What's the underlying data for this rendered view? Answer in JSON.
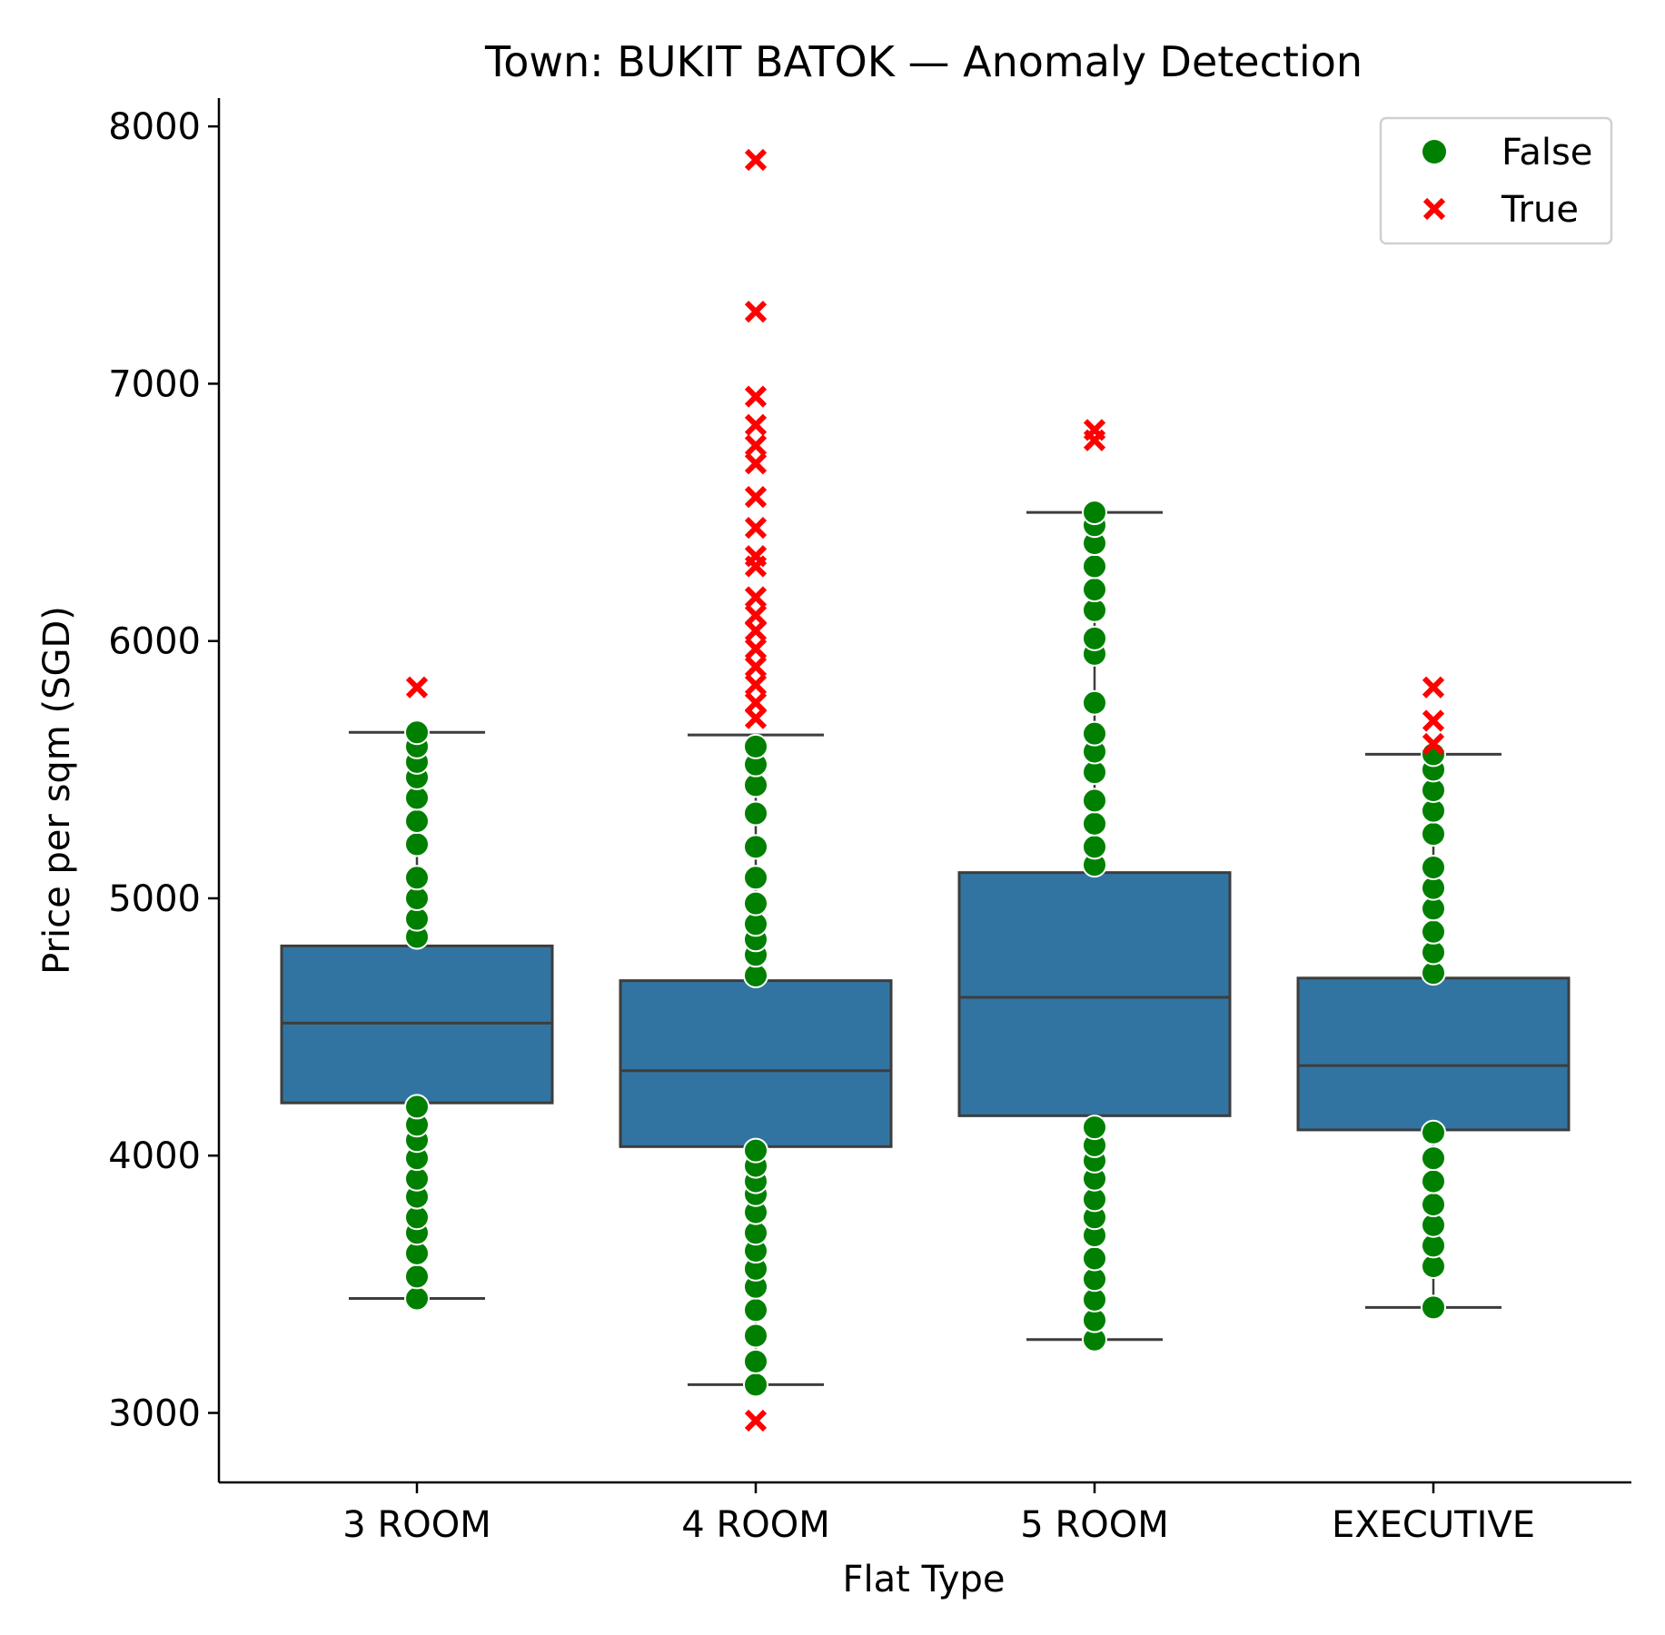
{
  "chart_data": {
    "type": "box",
    "title": "Town: BUKIT BATOK — Anomaly Detection",
    "xlabel": "Flat Type",
    "ylabel": "Price per sqm (SGD)",
    "categories": [
      "3 ROOM",
      "4 ROOM",
      "5 ROOM",
      "EXECUTIVE"
    ],
    "ylim": [
      2730,
      8110
    ],
    "yticks": [
      3000,
      4000,
      5000,
      6000,
      7000,
      8000
    ],
    "grid": false,
    "legend": {
      "placement": "top-right",
      "entries": [
        "False",
        "True"
      ]
    },
    "colors": {
      "box": "#3274a1",
      "box_edge": "#3d3d3d",
      "normal": "#008000",
      "anomaly": "#ff0000"
    },
    "boxes": [
      {
        "category": "3 ROOM",
        "whisker_low": 3445,
        "q1": 4205,
        "median": 4515,
        "q3": 4815,
        "whisker_high": 5645
      },
      {
        "category": "4 ROOM",
        "whisker_low": 3110,
        "q1": 4035,
        "median": 4330,
        "q3": 4680,
        "whisker_high": 5635
      },
      {
        "category": "5 ROOM",
        "whisker_low": 3285,
        "q1": 4155,
        "median": 4615,
        "q3": 5100,
        "whisker_high": 6500
      },
      {
        "category": "EXECUTIVE",
        "whisker_low": 3410,
        "q1": 4100,
        "median": 4350,
        "q3": 4690,
        "whisker_high": 5560
      }
    ],
    "series": [
      {
        "name": "False",
        "marker": "circle",
        "points": [
          {
            "category": "3 ROOM",
            "values": [
              3445,
              3530,
              3620,
              3700,
              3760,
              3840,
              3910,
              3990,
              4060,
              4120,
              4190,
              4850,
              4920,
              5000,
              5080,
              5210,
              5300,
              5390,
              5470,
              5530,
              5590,
              5645
            ]
          },
          {
            "category": "4 ROOM",
            "values": [
              3110,
              3200,
              3300,
              3400,
              3490,
              3560,
              3630,
              3700,
              3780,
              3850,
              3900,
              3960,
              4020,
              4700,
              4780,
              4840,
              4900,
              4980,
              5080,
              5200,
              5330,
              5440,
              5520,
              5590
            ]
          },
          {
            "category": "5 ROOM",
            "values": [
              3285,
              3360,
              3440,
              3520,
              3600,
              3690,
              3760,
              3830,
              3910,
              3980,
              4040,
              4110,
              5130,
              5200,
              5290,
              5380,
              5490,
              5570,
              5640,
              5760,
              5950,
              6010,
              6120,
              6200,
              6290,
              6380,
              6450,
              6500
            ]
          },
          {
            "category": "EXECUTIVE",
            "values": [
              3410,
              3570,
              3650,
              3730,
              3810,
              3900,
              3990,
              4090,
              4710,
              4790,
              4870,
              4960,
              5040,
              5120,
              5250,
              5340,
              5420,
              5500,
              5560
            ]
          }
        ]
      },
      {
        "name": "True",
        "marker": "x",
        "points": [
          {
            "category": "3 ROOM",
            "values": [
              5820
            ]
          },
          {
            "category": "4 ROOM",
            "values": [
              2970,
              5700,
              5760,
              5830,
              5900,
              5970,
              6040,
              6100,
              6170,
              6290,
              6330,
              6440,
              6560,
              6690,
              6760,
              6840,
              6950,
              7280,
              7870
            ]
          },
          {
            "category": "5 ROOM",
            "values": [
              6780,
              6820
            ]
          },
          {
            "category": "EXECUTIVE",
            "values": [
              5600,
              5690,
              5820
            ]
          }
        ]
      }
    ]
  }
}
